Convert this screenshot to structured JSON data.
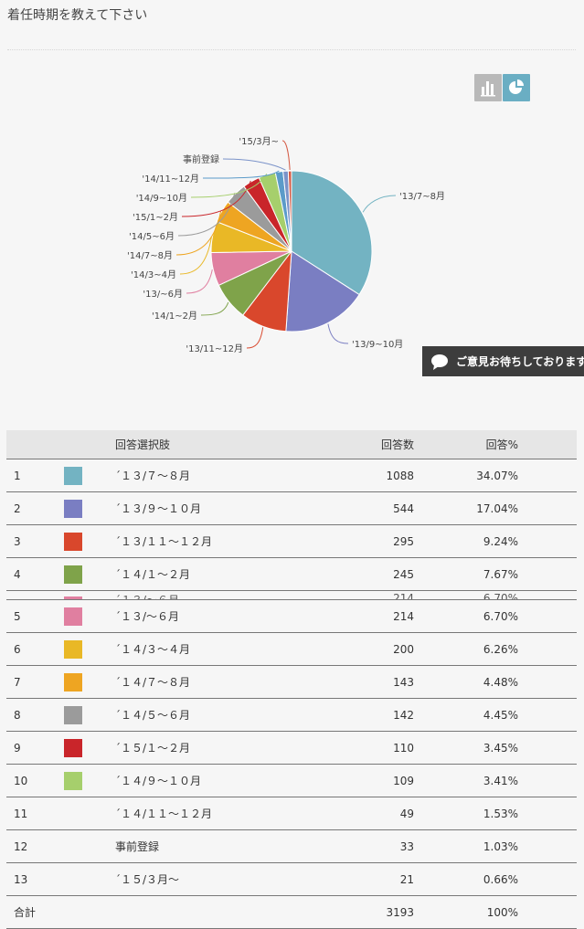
{
  "question": "着任時期を教えて下さい",
  "view_buttons": {
    "bar": "bar-chart-icon",
    "pie": "pie-chart-icon"
  },
  "chart_data": {
    "type": "pie",
    "categories": [
      "'13/7~8月",
      "'13/9~10月",
      "'13/11~12月",
      "'14/1~2月",
      "'13/~6月",
      "'14/3~4月",
      "'14/7~8月",
      "'14/5~6月",
      "'15/1~2月",
      "'14/9~10月",
      "'14/11~12月",
      "事前登録",
      "'15/3月~"
    ],
    "values": [
      1088,
      544,
      295,
      245,
      214,
      200,
      143,
      142,
      110,
      109,
      49,
      33,
      21
    ],
    "colors": [
      "#73b3c2",
      "#7a7ec2",
      "#d9472c",
      "#7fa34a",
      "#e07fa0",
      "#e9b826",
      "#eea522",
      "#9b9b9b",
      "#c9252a",
      "#a6cf6c",
      "#5b9bc9",
      "#7b93c9",
      "#d55a44"
    ]
  },
  "feedback_label": "ご意見お待ちしております",
  "table": {
    "headers": {
      "label": "回答選択肢",
      "count": "回答数",
      "pct": "回答%"
    },
    "rows": [
      {
        "no": "1",
        "label": "´１３/７～８月",
        "count": "1088",
        "pct": "34.07%",
        "color": "#73b3c2"
      },
      {
        "no": "2",
        "label": "´１３/９～１０月",
        "count": "544",
        "pct": "17.04%",
        "color": "#7a7ec2"
      },
      {
        "no": "3",
        "label": "´１３/１１～１２月",
        "count": "295",
        "pct": "9.24%",
        "color": "#d9472c"
      },
      {
        "no": "4",
        "label": "´１４/１～２月",
        "count": "245",
        "pct": "7.67%",
        "color": "#7fa34a"
      },
      {
        "no": "5",
        "label": "´１３/～６月",
        "count": "214",
        "pct": "6.70%",
        "color": "#e07fa0"
      },
      {
        "no": "6",
        "label": "´１４/３～４月",
        "count": "200",
        "pct": "6.26%",
        "color": "#e9b826"
      },
      {
        "no": "7",
        "label": "´１４/７～８月",
        "count": "143",
        "pct": "4.48%",
        "color": "#eea522"
      },
      {
        "no": "8",
        "label": "´１４/５～６月",
        "count": "142",
        "pct": "4.45%",
        "color": "#9b9b9b"
      },
      {
        "no": "9",
        "label": "´１５/１～２月",
        "count": "110",
        "pct": "3.45%",
        "color": "#c9252a"
      },
      {
        "no": "10",
        "label": "´１４/９～１０月",
        "count": "109",
        "pct": "3.41%",
        "color": "#a6cf6c"
      },
      {
        "no": "11",
        "label": "´１４/１１～１２月",
        "count": "49",
        "pct": "1.53%",
        "color": ""
      },
      {
        "no": "12",
        "label": "事前登録",
        "count": "33",
        "pct": "1.03%",
        "color": ""
      },
      {
        "no": "13",
        "label": "´１５/３月～",
        "count": "21",
        "pct": "0.66%",
        "color": ""
      }
    ],
    "total": {
      "label": "合計",
      "count": "3193",
      "pct": "100%"
    }
  }
}
